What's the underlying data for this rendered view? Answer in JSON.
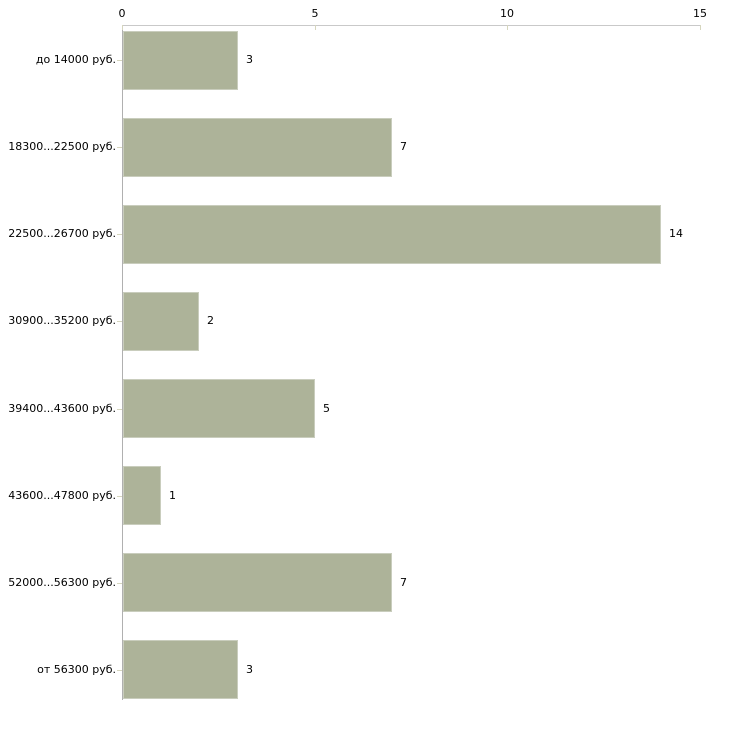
{
  "chart_data": {
    "type": "bar",
    "orientation": "horizontal",
    "title": "",
    "xlabel": "",
    "ylabel": "",
    "categories": [
      "до 14000 руб.",
      "18300...22500 руб.",
      "22500...26700 руб.",
      "30900...35200 руб.",
      "39400...43600 руб.",
      "43600...47800 руб.",
      "52000...56300 руб.",
      "от 56300 руб."
    ],
    "values": [
      3,
      7,
      14,
      2,
      5,
      1,
      7,
      3
    ],
    "x_ticks": [
      0,
      5,
      10,
      15
    ],
    "xlim": [
      0,
      15
    ],
    "grid": false,
    "legend": false,
    "data_labels_shown": true,
    "colors": {
      "background": "#ffffff",
      "bar_fill": "#adb399",
      "bar_border": "#c9cdbd",
      "x_axis_line": "#c9c9c9",
      "y_axis_line": "#b0b0b0",
      "tick_mark": "#d6d6be",
      "text": "#000000"
    }
  }
}
